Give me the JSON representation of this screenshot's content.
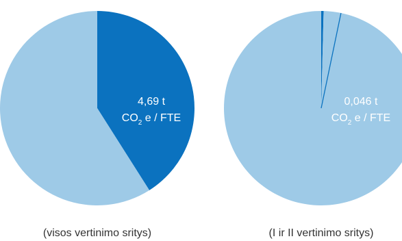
{
  "colors": {
    "light": "#9ecae7",
    "dark": "#0b72bf",
    "text_on_chart": "#ffffff",
    "caption": "#333333"
  },
  "chart_data": [
    {
      "type": "pie",
      "caption": "(visos vertinimo sritys)",
      "highlight_value": "4,69 t",
      "highlight_unit_lines": [
        "CO",
        "2",
        " e / FTE"
      ],
      "slices": [
        {
          "name": "",
          "value": 0.41,
          "color": "#0b72bf"
        },
        {
          "name": "",
          "value": 0.59,
          "color": "#9ecae7"
        }
      ]
    },
    {
      "type": "pie",
      "caption": "(I ir II vertinimo sritys)",
      "highlight_value": "0,046 t",
      "highlight_unit_lines": [
        "CO",
        "2",
        " e / FTE"
      ],
      "slices": [
        {
          "name": "",
          "value": 0.004,
          "color": "#0b72bf"
        },
        {
          "name": "",
          "value": 0.996,
          "color": "#9ecae7"
        }
      ]
    }
  ]
}
